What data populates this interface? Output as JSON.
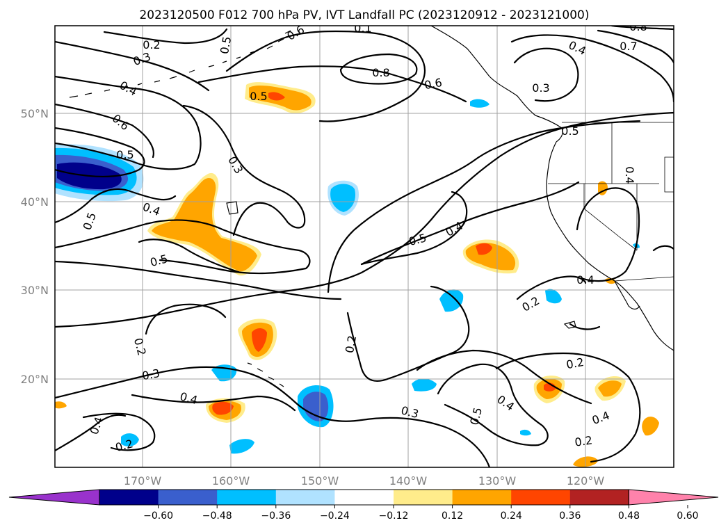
{
  "title": "2023120500 F012 700 hPa PV, IVT Landfall PC (2023120912 - 2023121000)",
  "lat_labels": [
    "50°N",
    "40°N",
    "30°N",
    "20°N"
  ],
  "lon_labels": [
    "170°W",
    "160°W",
    "150°W",
    "140°W",
    "130°W",
    "120°W"
  ],
  "colorbar": {
    "ticks": [
      "−0.60",
      "−0.48",
      "−0.36",
      "−0.24",
      "−0.12",
      "0.12",
      "0.24",
      "0.36",
      "0.48",
      "0.60"
    ],
    "colors": [
      "#9932cc",
      "#00008b",
      "#3a5fcd",
      "#00bfff",
      "#b0e2ff",
      "#ffffff",
      "#ffec8b",
      "#ffa500",
      "#ff4500",
      "#b22222",
      "#ff82ab"
    ]
  },
  "contour_labels": [
    {
      "text": "0.2"
    },
    {
      "text": "0.3"
    },
    {
      "text": "0.4"
    },
    {
      "text": "0.6"
    },
    {
      "text": "0.5"
    },
    {
      "text": "0.5"
    },
    {
      "text": "0.3"
    },
    {
      "text": "0.4"
    },
    {
      "text": "0.5"
    },
    {
      "text": "0.5"
    },
    {
      "text": "0.5"
    },
    {
      "text": "0.8"
    },
    {
      "text": "0.6"
    },
    {
      "text": "0.1"
    },
    {
      "text": "0.6"
    },
    {
      "text": "0.3"
    },
    {
      "text": "0.4"
    },
    {
      "text": "0.7"
    },
    {
      "text": "0.8"
    },
    {
      "text": "0.5"
    },
    {
      "text": "0.4"
    },
    {
      "text": "0.5"
    },
    {
      "text": "0.4"
    },
    {
      "text": "0.2"
    },
    {
      "text": "0.4"
    },
    {
      "text": "0.2"
    },
    {
      "text": "0.3"
    },
    {
      "text": "0.4"
    },
    {
      "text": "0.4"
    },
    {
      "text": "0.2"
    },
    {
      "text": "0.2"
    },
    {
      "text": "0.3"
    },
    {
      "text": "0.5"
    },
    {
      "text": "0.4"
    },
    {
      "text": "0.2"
    },
    {
      "text": "0.4"
    },
    {
      "text": "0.2"
    }
  ]
}
